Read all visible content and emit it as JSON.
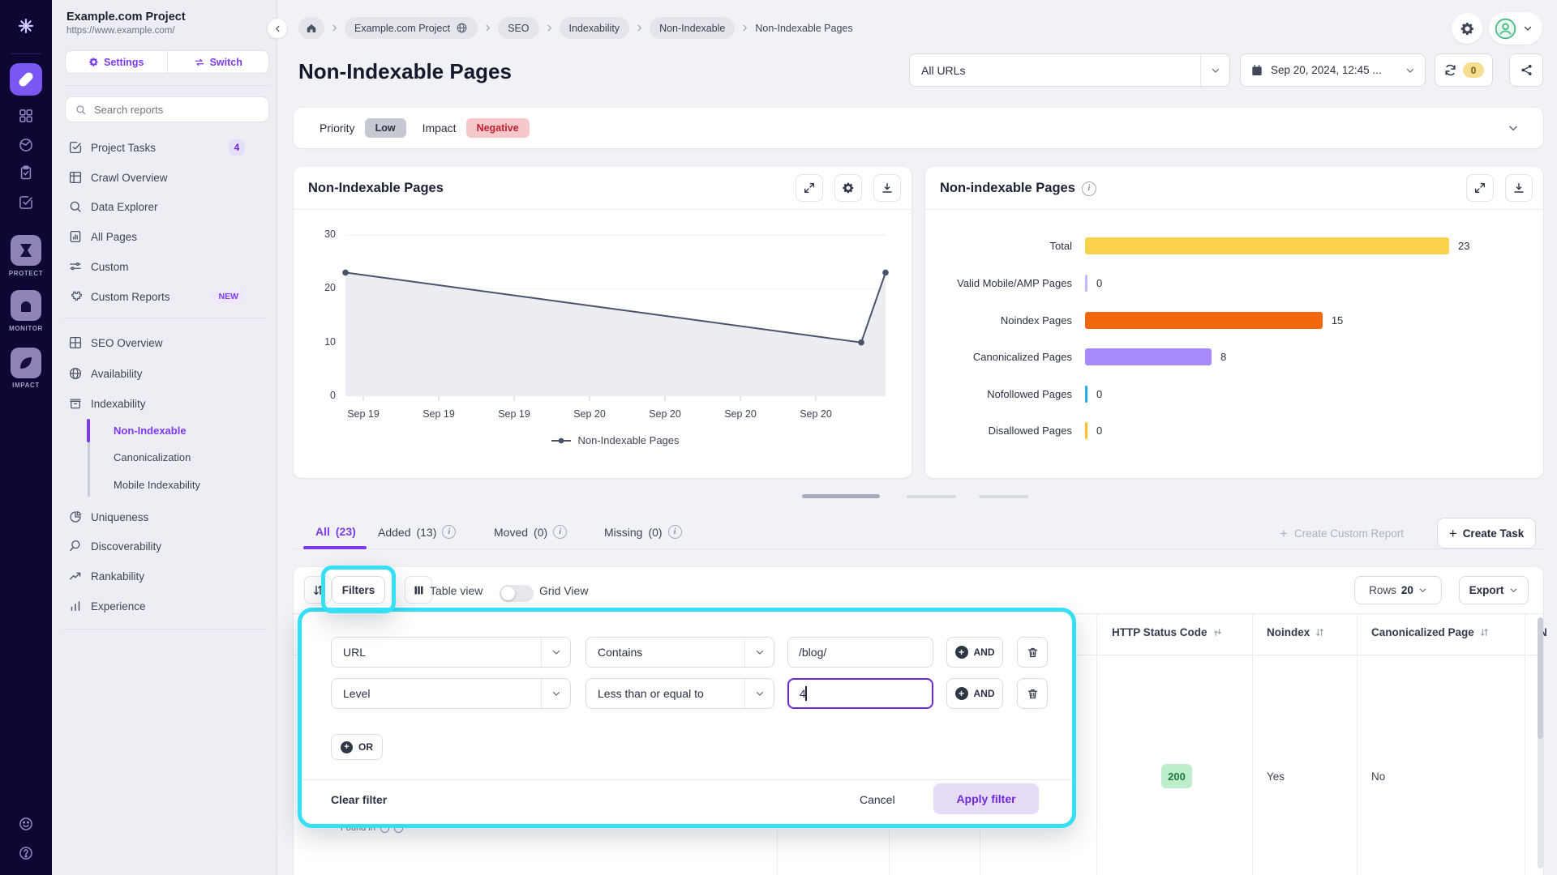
{
  "rail": {
    "protect": "PROTECT",
    "monitor": "MONITOR",
    "impact": "IMPACT"
  },
  "sidebar": {
    "project_name": "Example.com Project",
    "project_url": "https://www.example.com/",
    "settings": "Settings",
    "switch": "Switch",
    "search_placeholder": "Search reports",
    "items": [
      {
        "label": "Project Tasks",
        "badge": "4"
      },
      {
        "label": "Crawl Overview",
        "badge": ""
      },
      {
        "label": "Data Explorer",
        "badge": ""
      },
      {
        "label": "All Pages",
        "badge": ""
      },
      {
        "label": "Custom",
        "badge": ""
      },
      {
        "label": "Custom Reports",
        "badge": "NEW"
      }
    ],
    "sections": [
      {
        "label": "SEO Overview"
      },
      {
        "label": "Availability"
      },
      {
        "label": "Indexability"
      },
      {
        "label": "Uniqueness"
      },
      {
        "label": "Discoverability"
      },
      {
        "label": "Rankability"
      },
      {
        "label": "Experience"
      }
    ],
    "indexability_children": [
      {
        "label": "Non-Indexable"
      },
      {
        "label": "Canonicalization"
      },
      {
        "label": "Mobile Indexability"
      }
    ]
  },
  "breadcrumb": {
    "crumbs": [
      "Example.com Project",
      "SEO",
      "Indexability",
      "Non-Indexable"
    ],
    "current": "Non-Indexable Pages"
  },
  "topbar": {
    "url_scope": "All URLs",
    "date": "Sep 20, 2024, 12:45 ...",
    "refresh_count": "0"
  },
  "page": {
    "title": "Non-Indexable Pages"
  },
  "meta": {
    "priority_label": "Priority",
    "priority": "Low",
    "impact_label": "Impact",
    "impact": "Negative"
  },
  "chart_data": [
    {
      "type": "area",
      "title": "Non-Indexable Pages",
      "legend": "Non-Indexable Pages",
      "x_ticks": [
        "Sep 19",
        "Sep 19",
        "Sep 19",
        "Sep 20",
        "Sep 20",
        "Sep 20",
        "Sep 20"
      ],
      "y_ticks": [
        30,
        20,
        10,
        0
      ],
      "ylim": [
        0,
        30
      ],
      "points": [
        {
          "t": 0.0,
          "value": 23
        },
        {
          "t": 0.955,
          "value": 10
        },
        {
          "t": 1.0,
          "value": 23
        }
      ],
      "line_color": "#49536B",
      "fill_color": "#EBEDF1",
      "grid": true,
      "legend_position": "bottom"
    },
    {
      "type": "bar",
      "title": "Non-indexable Pages",
      "categories": [
        "Total",
        "Valid Mobile/AMP Pages",
        "Noindex Pages",
        "Canonicalized Pages",
        "Nofollowed Pages",
        "Disallowed Pages"
      ],
      "values": [
        23,
        0,
        15,
        8,
        0,
        0
      ],
      "colors": [
        "#FBD24E",
        "#C4B5FD",
        "#F2690D",
        "#A78BFA",
        "#29A8F0",
        "#FBBF24"
      ],
      "xlim": [
        0,
        23
      ],
      "orientation": "horizontal"
    }
  ],
  "tabs": [
    {
      "label": "All",
      "count": "(23)"
    },
    {
      "label": "Added",
      "count": "(13)"
    },
    {
      "label": "Moved",
      "count": "(0)"
    },
    {
      "label": "Missing",
      "count": "(0)"
    }
  ],
  "actions": {
    "create_report": "Create Custom Report",
    "create_task": "Create Task"
  },
  "toolbar": {
    "filters": "Filters",
    "table_view": "Table view",
    "grid_view": "Grid View",
    "rows_label": "Rows",
    "rows_value": "20",
    "export": "Export"
  },
  "filter_panel": {
    "rows": [
      {
        "field": "URL",
        "operator": "Contains",
        "value": "/blog/"
      },
      {
        "field": "Level",
        "operator": "Less than or equal to",
        "value": "4"
      }
    ],
    "and": "AND",
    "or": "OR",
    "clear": "Clear filter",
    "cancel": "Cancel",
    "apply": "Apply filter"
  },
  "table": {
    "headers": [
      "HTTP Status Code",
      "Noindex",
      "Canonicalized Page",
      "N"
    ],
    "row": {
      "http_status_code": "200",
      "noindex": "Yes",
      "canonicalized_page": "No"
    },
    "partial_row_note": "Found in"
  },
  "colors": {
    "accent": "#7C3AED",
    "highlight": "#35DFF4",
    "negative_bg": "#F7C8CB",
    "negative_text": "#BE1E2D",
    "status_ok_bg": "#BDEECB",
    "status_ok_text": "#1F7A3D"
  }
}
